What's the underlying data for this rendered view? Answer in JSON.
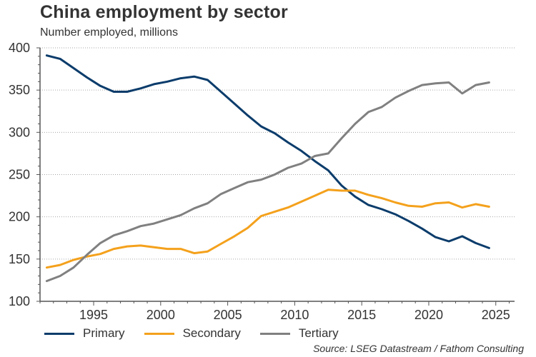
{
  "header": {
    "title": "China employment by sector",
    "subtitle": "Number employed, millions"
  },
  "source": "Source: LSEG Datastream / Fathom Consulting",
  "colors": {
    "primary": "#0b3c6b",
    "secondary": "#f4a11c",
    "tertiary": "#808080",
    "grid": "#a6a6a6",
    "axis": "#555555"
  },
  "chart_data": {
    "type": "line",
    "title": "China employment by sector",
    "subtitle": "Number employed, millions",
    "xlabel": "",
    "ylabel": "Number employed, millions",
    "xlim": [
      1991,
      2026.4
    ],
    "ylim": [
      100,
      400
    ],
    "x_ticks": [
      1995,
      2000,
      2005,
      2010,
      2015,
      2020,
      2025
    ],
    "y_ticks": [
      100,
      150,
      200,
      250,
      300,
      350,
      400
    ],
    "grid": "horizontal dotted",
    "legend_position": "bottom-left",
    "x": [
      1991,
      1992,
      1993,
      1994,
      1995,
      1996,
      1997,
      1998,
      1999,
      2000,
      2001,
      2002,
      2003,
      2004,
      2005,
      2006,
      2007,
      2008,
      2009,
      2010,
      2011,
      2012,
      2013,
      2014,
      2015,
      2016,
      2017,
      2018,
      2019,
      2020,
      2021,
      2022,
      2023,
      2024
    ],
    "series": [
      {
        "name": "Primary",
        "color_key": "primary",
        "values": [
          391,
          387,
          376,
          365,
          355,
          348,
          348,
          352,
          357,
          360,
          364,
          366,
          362,
          348,
          334,
          320,
          307,
          299,
          288,
          278,
          266,
          255,
          237,
          224,
          214,
          209,
          203,
          195,
          186,
          176,
          171,
          177,
          169,
          163
        ]
      },
      {
        "name": "Secondary",
        "color_key": "secondary",
        "values": [
          140,
          143,
          149,
          153,
          156,
          162,
          165,
          166,
          164,
          162,
          162,
          157,
          159,
          168,
          177,
          187,
          201,
          206,
          211,
          218,
          225,
          232,
          231,
          231,
          226,
          222,
          217,
          213,
          212,
          216,
          217,
          211,
          215,
          212
        ]
      },
      {
        "name": "Tertiary",
        "color_key": "tertiary",
        "values": [
          124,
          130,
          140,
          155,
          169,
          178,
          183,
          189,
          192,
          197,
          202,
          210,
          216,
          227,
          234,
          241,
          244,
          250,
          258,
          263,
          272,
          275,
          293,
          310,
          324,
          330,
          341,
          349,
          356,
          358,
          359,
          346,
          356,
          359
        ]
      }
    ]
  }
}
